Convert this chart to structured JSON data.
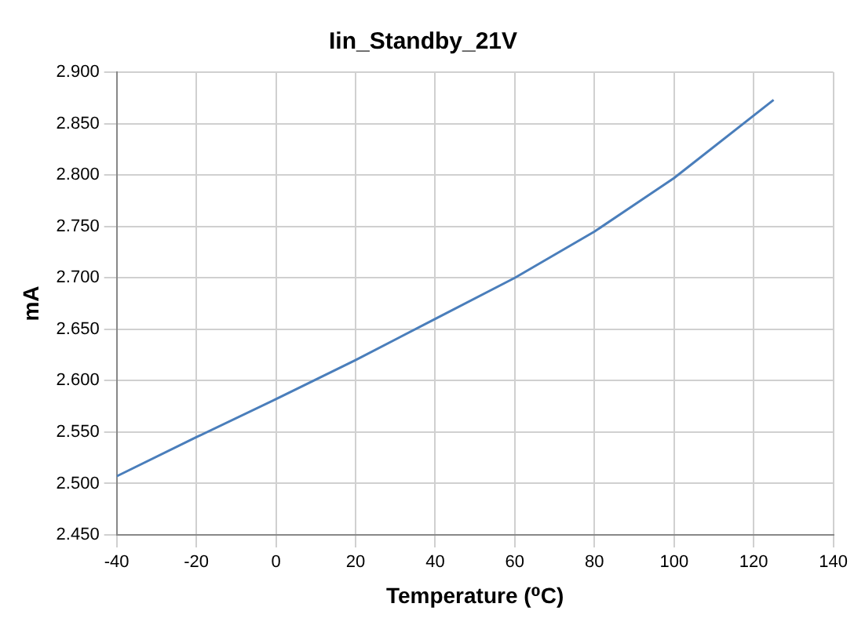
{
  "chart_data": {
    "type": "line",
    "title": "Iin_Standby_21V",
    "xlabel": "Temperature (⁰C)",
    "ylabel": "mA",
    "x": [
      -40,
      -20,
      0,
      20,
      40,
      60,
      80,
      100,
      125
    ],
    "series": [
      {
        "color": "#4a7ebb",
        "values": [
          2.507,
          2.545,
          2.582,
          2.62,
          2.66,
          2.7,
          2.745,
          2.797,
          2.873
        ]
      }
    ],
    "xlim": [
      -40,
      140
    ],
    "xticks": [
      -40,
      -20,
      0,
      20,
      40,
      60,
      80,
      100,
      120,
      140
    ],
    "ylim": [
      2.45,
      2.9
    ],
    "yticks": [
      {
        "value": 2.45,
        "label": "2.450"
      },
      {
        "value": 2.5,
        "label": "2.500"
      },
      {
        "value": 2.55,
        "label": "2.550"
      },
      {
        "value": 2.6,
        "label": "2.600"
      },
      {
        "value": 2.65,
        "label": "2.650"
      },
      {
        "value": 2.7,
        "label": "2.700"
      },
      {
        "value": 2.75,
        "label": "2.750"
      },
      {
        "value": 2.8,
        "label": "2.800"
      },
      {
        "value": 2.85,
        "label": "2.850"
      },
      {
        "value": 2.9,
        "label": "2.900"
      }
    ],
    "grid": true,
    "marker": "none",
    "line_style": "solid"
  }
}
